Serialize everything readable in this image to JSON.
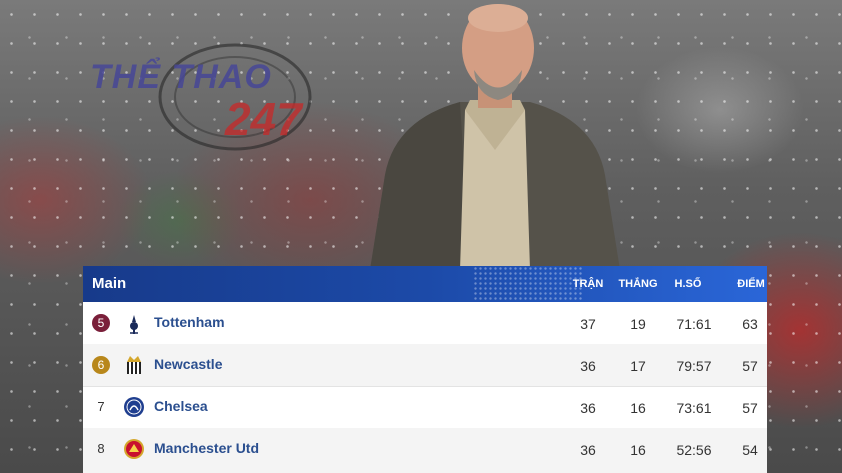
{
  "watermark": {
    "line1": "THỂ THAO",
    "line2": "247"
  },
  "table": {
    "title": "Main",
    "columns": {
      "tran": "TRẬN",
      "thang": "THẮNG",
      "hs": "H.SỐ",
      "diem": "ĐIỂM"
    },
    "rows": [
      {
        "rank": "5",
        "team": "Tottenham",
        "played": "37",
        "won": "19",
        "gd": "71:61",
        "points": "63",
        "rank_color": "#7a1f3a"
      },
      {
        "rank": "6",
        "team": "Newcastle",
        "played": "36",
        "won": "17",
        "gd": "79:57",
        "points": "57",
        "rank_color": "#b8871b"
      },
      {
        "rank": "7",
        "team": "Chelsea",
        "played": "36",
        "won": "16",
        "gd": "73:61",
        "points": "57",
        "rank_color": ""
      },
      {
        "rank": "8",
        "team": "Manchester Utd",
        "played": "36",
        "won": "16",
        "gd": "52:56",
        "points": "54",
        "rank_color": ""
      }
    ]
  }
}
